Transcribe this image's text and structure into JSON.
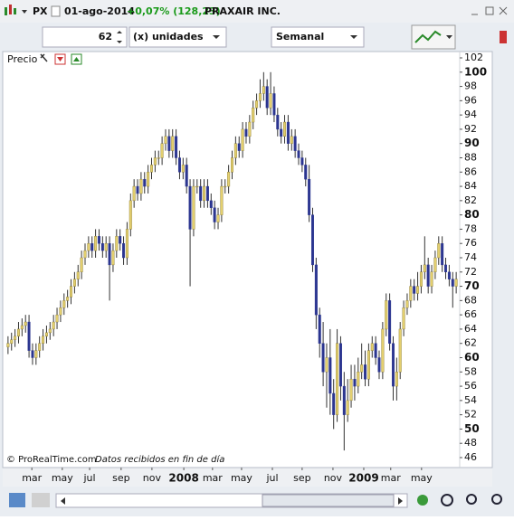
{
  "header": {
    "symbol": "PX",
    "date": "01-ago-2014",
    "change": "+0,07% (128,23)",
    "name": "PRAXAIR INC."
  },
  "toolbar": {
    "quantity": "62",
    "units": "(x) unidades",
    "period": "Semanal"
  },
  "chart_data": {
    "type": "candlestick",
    "panel_label": "Precio",
    "credit": "© ProRealTime.com",
    "note": "Datos recibidos en fin de día",
    "x": [
      1,
      2,
      3,
      4,
      5,
      6,
      7,
      8,
      9,
      10,
      11,
      12,
      13,
      14,
      15,
      16,
      17,
      18,
      19,
      20,
      21,
      22,
      23,
      24,
      25,
      26,
      27,
      28,
      29,
      30,
      31,
      32,
      33,
      34,
      35,
      36,
      37,
      38,
      39,
      40,
      41,
      42,
      43,
      44,
      45,
      46,
      47,
      48,
      49,
      50,
      51,
      52,
      53,
      54,
      55,
      56,
      57,
      58,
      59,
      60,
      61,
      62,
      63,
      64,
      65,
      66,
      67,
      68,
      69,
      70,
      71,
      72,
      73,
      74,
      75,
      76,
      77,
      78,
      79,
      80,
      81,
      82,
      83,
      84,
      85,
      86,
      87,
      88,
      89,
      90,
      91,
      92,
      93,
      94,
      95,
      96,
      97,
      98,
      99,
      100,
      101,
      102,
      103,
      104,
      105,
      106,
      107,
      108,
      109,
      110,
      111,
      112,
      113,
      114,
      115,
      116,
      117,
      118,
      119,
      120,
      121,
      122,
      123,
      124,
      125,
      126,
      127,
      128,
      129
    ],
    "open": [
      61.5,
      62,
      62.5,
      63,
      64,
      64.5,
      65,
      61,
      60,
      61,
      62,
      63,
      63.5,
      64,
      65,
      66,
      67,
      68,
      68.5,
      70,
      71,
      72,
      74,
      75,
      76,
      75,
      77,
      76,
      75,
      76,
      73,
      75,
      77,
      76,
      74,
      78,
      82,
      84,
      83,
      85,
      84,
      86,
      87,
      88,
      88,
      90,
      91,
      89,
      91,
      88,
      86,
      87,
      84,
      78,
      84,
      84,
      82,
      84,
      82,
      81,
      79,
      80,
      84,
      84,
      86,
      88,
      90,
      89,
      92,
      91,
      93,
      95,
      96,
      97,
      98,
      95,
      97,
      94,
      92,
      91,
      93,
      90,
      91,
      89,
      88,
      87,
      85,
      80,
      73,
      66,
      62,
      58,
      60,
      55,
      52,
      62,
      56,
      52,
      54,
      57,
      56,
      58,
      59,
      57,
      61,
      62,
      60,
      58,
      64,
      68,
      62,
      56,
      58,
      64,
      67,
      68,
      70,
      69,
      70,
      72,
      73,
      70,
      72,
      74,
      76,
      73,
      72,
      71,
      70
    ],
    "high": [
      63,
      63.5,
      64,
      65,
      65.5,
      66,
      66,
      62,
      62,
      63,
      64,
      64.5,
      65,
      66,
      67,
      68,
      69,
      69.5,
      71,
      72,
      73,
      75,
      76,
      77,
      77,
      78,
      78,
      77,
      77,
      77,
      76,
      78,
      78,
      77,
      79,
      83,
      85,
      85,
      86,
      86,
      87,
      88,
      89,
      89,
      91,
      92,
      92,
      92,
      92,
      89,
      88,
      88,
      85,
      85,
      85,
      85,
      85,
      85,
      83,
      82,
      81,
      85,
      85,
      87,
      89,
      91,
      91,
      93,
      93,
      94,
      96,
      97,
      99,
      100,
      99,
      100,
      98,
      95,
      93,
      94,
      94,
      92,
      92,
      90,
      89,
      88,
      87,
      81,
      74,
      67,
      65,
      62,
      64,
      57,
      64,
      63,
      58,
      57,
      59,
      59,
      60,
      62,
      61,
      62,
      63,
      63,
      61,
      65,
      69,
      69,
      63,
      60,
      65,
      68,
      69,
      71,
      71,
      72,
      73,
      77,
      74,
      73,
      75,
      77,
      77,
      74,
      73,
      72,
      72
    ],
    "low": [
      60.5,
      61,
      61.5,
      62,
      63,
      63.5,
      60,
      59,
      59,
      60,
      61,
      62,
      62.5,
      63,
      64,
      65,
      66,
      67,
      67.5,
      69,
      70,
      71,
      73,
      74,
      74,
      74,
      75,
      74,
      74,
      68,
      72,
      74,
      75,
      73,
      73,
      77,
      81,
      82,
      82,
      83,
      83,
      85,
      86,
      87,
      87,
      89,
      88,
      88,
      87,
      85,
      85,
      83,
      70,
      77,
      83,
      81,
      81,
      81,
      80,
      78,
      78,
      79,
      83,
      83,
      85,
      87,
      88,
      88,
      90,
      90,
      92,
      94,
      95,
      96,
      94,
      94,
      93,
      91,
      90,
      90,
      89,
      89,
      88,
      87,
      86,
      84,
      79,
      72,
      64,
      60,
      56,
      53,
      52,
      50,
      51,
      54,
      47,
      51,
      53,
      54,
      55,
      57,
      56,
      56,
      60,
      59,
      57,
      57,
      63,
      61,
      54,
      54,
      57,
      63,
      66,
      67,
      68,
      68,
      69,
      71,
      69,
      69,
      71,
      73,
      72,
      71,
      70,
      67,
      69
    ],
    "close": [
      62,
      62.5,
      63,
      64,
      64.5,
      65,
      61,
      60,
      61,
      62,
      63,
      63.5,
      64,
      65,
      66,
      67,
      68,
      68.5,
      70,
      71,
      72,
      74,
      75,
      76,
      75,
      77,
      76,
      75,
      76,
      73,
      75,
      77,
      76,
      74,
      78,
      82,
      84,
      83,
      85,
      84,
      86,
      87,
      88,
      88,
      90,
      91,
      89,
      91,
      88,
      86,
      87,
      84,
      78,
      84,
      84,
      82,
      84,
      82,
      81,
      79,
      80,
      84,
      84,
      86,
      88,
      90,
      89,
      92,
      91,
      93,
      95,
      96,
      97,
      98,
      95,
      97,
      94,
      92,
      91,
      93,
      90,
      91,
      89,
      88,
      87,
      85,
      80,
      73,
      66,
      62,
      58,
      60,
      55,
      52,
      62,
      56,
      52,
      54,
      57,
      56,
      58,
      59,
      57,
      61,
      62,
      60,
      58,
      64,
      68,
      62,
      56,
      58,
      64,
      67,
      68,
      70,
      69,
      70,
      72,
      73,
      70,
      72,
      74,
      76,
      73,
      72,
      71,
      70,
      71
    ],
    "up_color": "#e3cf6e",
    "down_color": "#2b3590",
    "xlim": [
      0,
      130
    ],
    "xticks": [
      {
        "value": 7.8,
        "label": "mar"
      },
      {
        "value": 16.5,
        "label": "may"
      },
      {
        "value": 24.3,
        "label": "jul"
      },
      {
        "value": 33.3,
        "label": "sep"
      },
      {
        "value": 42.1,
        "label": "nov"
      },
      {
        "value": 51.2,
        "label": "2008"
      },
      {
        "value": 59.4,
        "label": "mar"
      },
      {
        "value": 67.7,
        "label": "may"
      },
      {
        "value": 76.5,
        "label": "jul"
      },
      {
        "value": 85,
        "label": "sep"
      },
      {
        "value": 93.8,
        "label": "nov"
      },
      {
        "value": 102.6,
        "label": "2009"
      },
      {
        "value": 110.3,
        "label": "mar"
      },
      {
        "value": 119.1,
        "label": "may"
      }
    ],
    "ylim": [
      46,
      102
    ],
    "yticks": [
      46,
      48,
      50,
      52,
      54,
      56,
      58,
      60,
      62,
      64,
      66,
      68,
      70,
      72,
      74,
      76,
      78,
      80,
      82,
      84,
      86,
      88,
      90,
      92,
      94,
      96,
      98,
      100,
      102
    ]
  }
}
